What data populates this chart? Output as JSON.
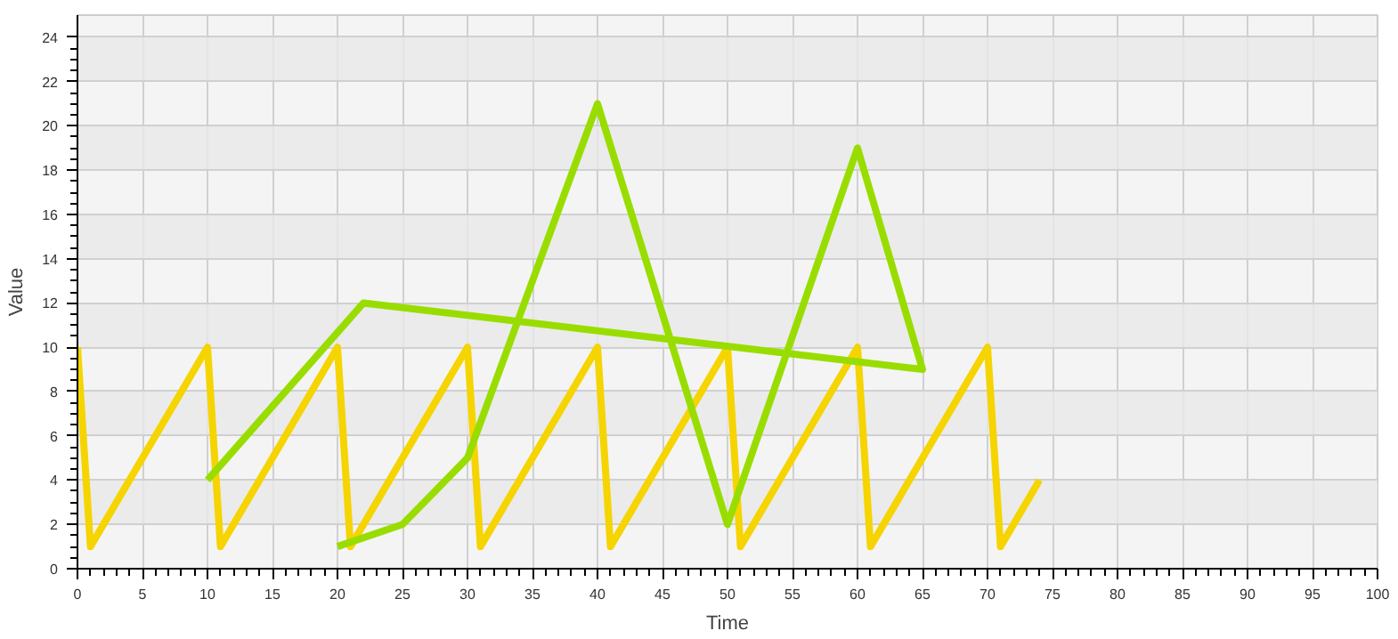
{
  "chart_data": {
    "type": "line",
    "xlabel": "Time",
    "ylabel": "Value",
    "xlim": [
      0,
      100
    ],
    "xticks": [
      0,
      5,
      10,
      15,
      20,
      25,
      30,
      35,
      40,
      45,
      50,
      55,
      60,
      65,
      70,
      75,
      80,
      85,
      90,
      95,
      100
    ],
    "ylim": [
      0,
      25
    ],
    "yticks": [
      0,
      2,
      4,
      6,
      8,
      10,
      12,
      14,
      16,
      18,
      20,
      22,
      24
    ],
    "grid": true,
    "marker": "none",
    "line_style": "solid",
    "series": [
      {
        "color": "#f5d400",
        "x": [
          0,
          1,
          10,
          11,
          20,
          21,
          30,
          31,
          40,
          41,
          50,
          51,
          60,
          61,
          70,
          71,
          74
        ],
        "values": [
          10,
          1,
          10,
          1,
          10,
          1,
          10,
          1,
          10,
          1,
          10,
          1,
          10,
          1,
          10,
          1,
          4
        ]
      },
      {
        "color": "#99dd00",
        "x": [
          10,
          22,
          65,
          60,
          50,
          40,
          30,
          25,
          20
        ],
        "values": [
          4,
          12,
          9,
          19,
          2,
          21,
          5,
          2,
          1
        ]
      }
    ]
  }
}
